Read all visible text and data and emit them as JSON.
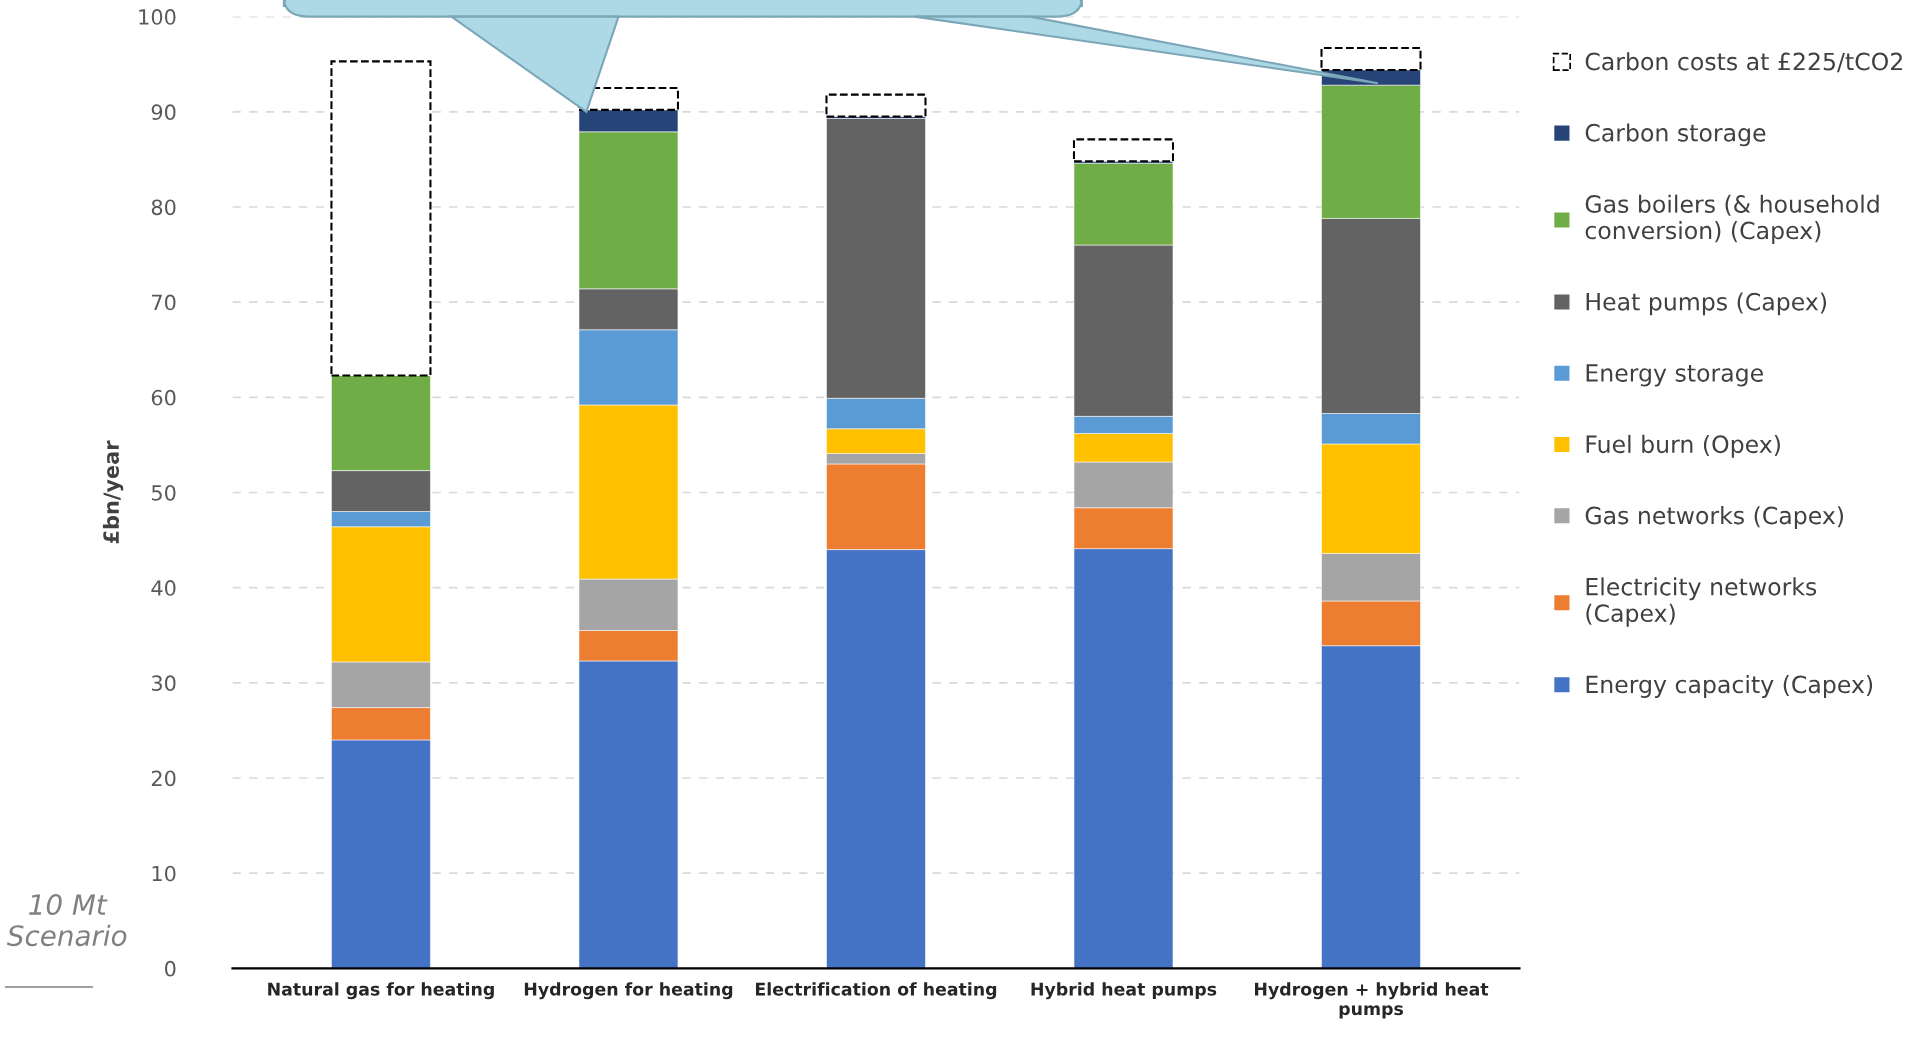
{
  "chart_data": {
    "type": "bar",
    "stacked": true,
    "ylabel": "£bn/year",
    "categories": [
      "Natural gas for heating",
      "Hydrogen for heating",
      "Electrification of heating",
      "Hybrid heat pumps",
      "Hydrogen + hybrid heat pumps"
    ],
    "series": [
      {
        "name": "Energy capacity (Capex)",
        "color": "#4472c4",
        "values": [
          24.0,
          32.3,
          44.0,
          44.1,
          33.9
        ]
      },
      {
        "name": "Electricity networks (Capex)",
        "color": "#ed7d31",
        "values": [
          3.4,
          3.2,
          9.0,
          4.3,
          4.7
        ]
      },
      {
        "name": "Gas networks (Capex)",
        "color": "#a5a5a5",
        "values": [
          4.8,
          5.4,
          1.1,
          4.8,
          5.0
        ]
      },
      {
        "name": "Fuel burn (Opex)",
        "color": "#ffc000",
        "values": [
          14.2,
          18.3,
          2.6,
          3.0,
          11.5
        ]
      },
      {
        "name": "Energy storage",
        "color": "#5b9bd5",
        "values": [
          1.6,
          7.9,
          3.2,
          1.8,
          3.2
        ]
      },
      {
        "name": "Heat pumps (Capex)",
        "color": "#636363",
        "values": [
          4.3,
          4.3,
          29.4,
          18.0,
          20.5
        ]
      },
      {
        "name": "Gas boilers (& household conversion) (Capex)",
        "color": "#70ad47",
        "values": [
          10.0,
          16.5,
          0,
          8.6,
          14.0
        ]
      },
      {
        "name": "Carbon storage",
        "color": "#264478",
        "values": [
          0,
          2.3,
          0.2,
          0.2,
          1.6
        ]
      },
      {
        "name": "Carbon costs at £225/tCO2",
        "color": "#ffffff",
        "line_style": "dashed",
        "values": [
          33.0,
          2.3,
          2.3,
          2.3,
          2.3
        ]
      }
    ],
    "ylim": [
      0,
      100
    ],
    "yticks": [
      0,
      10,
      20,
      30,
      40,
      50,
      60,
      70,
      80,
      90,
      100
    ],
    "grid": "y",
    "legend": "right",
    "annotations": [
      "10 Mt Scenario"
    ]
  }
}
